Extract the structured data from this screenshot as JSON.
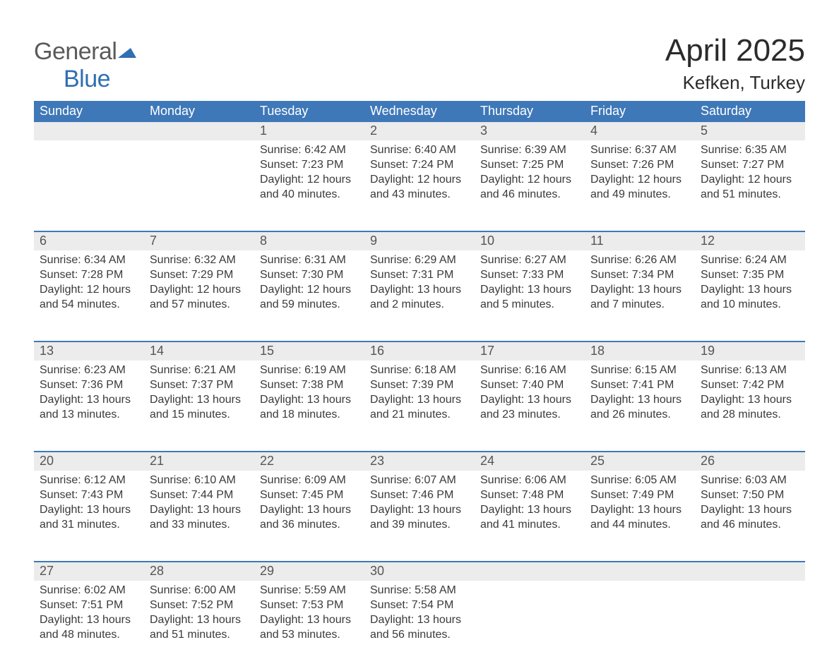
{
  "logo": {
    "word1": "General",
    "word2": "Blue",
    "flag_color": "#2f6fb2",
    "text_gray": "#5a5a5a"
  },
  "header": {
    "month_title": "April 2025",
    "location": "Kefken, Turkey"
  },
  "colors": {
    "header_bg": "#3e78b8",
    "header_text": "#ffffff",
    "daynum_bg": "#ececec",
    "daynum_text": "#555555",
    "body_text": "#3a3a3a",
    "week_border": "#3e78b8",
    "page_bg": "#ffffff"
  },
  "fonts": {
    "title_size_pt": 33,
    "location_size_pt": 20,
    "dow_size_pt": 14,
    "daynum_size_pt": 14,
    "cell_size_pt": 12
  },
  "days_of_week": [
    "Sunday",
    "Monday",
    "Tuesday",
    "Wednesday",
    "Thursday",
    "Friday",
    "Saturday"
  ],
  "labels": {
    "sunrise": "Sunrise:",
    "sunset": "Sunset:",
    "daylight": "Daylight:"
  },
  "weeks": [
    [
      null,
      null,
      {
        "n": "1",
        "sunrise": "6:42 AM",
        "sunset": "7:23 PM",
        "day_h": "12",
        "day_m": "40"
      },
      {
        "n": "2",
        "sunrise": "6:40 AM",
        "sunset": "7:24 PM",
        "day_h": "12",
        "day_m": "43"
      },
      {
        "n": "3",
        "sunrise": "6:39 AM",
        "sunset": "7:25 PM",
        "day_h": "12",
        "day_m": "46"
      },
      {
        "n": "4",
        "sunrise": "6:37 AM",
        "sunset": "7:26 PM",
        "day_h": "12",
        "day_m": "49"
      },
      {
        "n": "5",
        "sunrise": "6:35 AM",
        "sunset": "7:27 PM",
        "day_h": "12",
        "day_m": "51"
      }
    ],
    [
      {
        "n": "6",
        "sunrise": "6:34 AM",
        "sunset": "7:28 PM",
        "day_h": "12",
        "day_m": "54"
      },
      {
        "n": "7",
        "sunrise": "6:32 AM",
        "sunset": "7:29 PM",
        "day_h": "12",
        "day_m": "57"
      },
      {
        "n": "8",
        "sunrise": "6:31 AM",
        "sunset": "7:30 PM",
        "day_h": "12",
        "day_m": "59"
      },
      {
        "n": "9",
        "sunrise": "6:29 AM",
        "sunset": "7:31 PM",
        "day_h": "13",
        "day_m": "2"
      },
      {
        "n": "10",
        "sunrise": "6:27 AM",
        "sunset": "7:33 PM",
        "day_h": "13",
        "day_m": "5"
      },
      {
        "n": "11",
        "sunrise": "6:26 AM",
        "sunset": "7:34 PM",
        "day_h": "13",
        "day_m": "7"
      },
      {
        "n": "12",
        "sunrise": "6:24 AM",
        "sunset": "7:35 PM",
        "day_h": "13",
        "day_m": "10"
      }
    ],
    [
      {
        "n": "13",
        "sunrise": "6:23 AM",
        "sunset": "7:36 PM",
        "day_h": "13",
        "day_m": "13"
      },
      {
        "n": "14",
        "sunrise": "6:21 AM",
        "sunset": "7:37 PM",
        "day_h": "13",
        "day_m": "15"
      },
      {
        "n": "15",
        "sunrise": "6:19 AM",
        "sunset": "7:38 PM",
        "day_h": "13",
        "day_m": "18"
      },
      {
        "n": "16",
        "sunrise": "6:18 AM",
        "sunset": "7:39 PM",
        "day_h": "13",
        "day_m": "21"
      },
      {
        "n": "17",
        "sunrise": "6:16 AM",
        "sunset": "7:40 PM",
        "day_h": "13",
        "day_m": "23"
      },
      {
        "n": "18",
        "sunrise": "6:15 AM",
        "sunset": "7:41 PM",
        "day_h": "13",
        "day_m": "26"
      },
      {
        "n": "19",
        "sunrise": "6:13 AM",
        "sunset": "7:42 PM",
        "day_h": "13",
        "day_m": "28"
      }
    ],
    [
      {
        "n": "20",
        "sunrise": "6:12 AM",
        "sunset": "7:43 PM",
        "day_h": "13",
        "day_m": "31"
      },
      {
        "n": "21",
        "sunrise": "6:10 AM",
        "sunset": "7:44 PM",
        "day_h": "13",
        "day_m": "33"
      },
      {
        "n": "22",
        "sunrise": "6:09 AM",
        "sunset": "7:45 PM",
        "day_h": "13",
        "day_m": "36"
      },
      {
        "n": "23",
        "sunrise": "6:07 AM",
        "sunset": "7:46 PM",
        "day_h": "13",
        "day_m": "39"
      },
      {
        "n": "24",
        "sunrise": "6:06 AM",
        "sunset": "7:48 PM",
        "day_h": "13",
        "day_m": "41"
      },
      {
        "n": "25",
        "sunrise": "6:05 AM",
        "sunset": "7:49 PM",
        "day_h": "13",
        "day_m": "44"
      },
      {
        "n": "26",
        "sunrise": "6:03 AM",
        "sunset": "7:50 PM",
        "day_h": "13",
        "day_m": "46"
      }
    ],
    [
      {
        "n": "27",
        "sunrise": "6:02 AM",
        "sunset": "7:51 PM",
        "day_h": "13",
        "day_m": "48"
      },
      {
        "n": "28",
        "sunrise": "6:00 AM",
        "sunset": "7:52 PM",
        "day_h": "13",
        "day_m": "51"
      },
      {
        "n": "29",
        "sunrise": "5:59 AM",
        "sunset": "7:53 PM",
        "day_h": "13",
        "day_m": "53"
      },
      {
        "n": "30",
        "sunrise": "5:58 AM",
        "sunset": "7:54 PM",
        "day_h": "13",
        "day_m": "56"
      },
      null,
      null,
      null
    ]
  ]
}
